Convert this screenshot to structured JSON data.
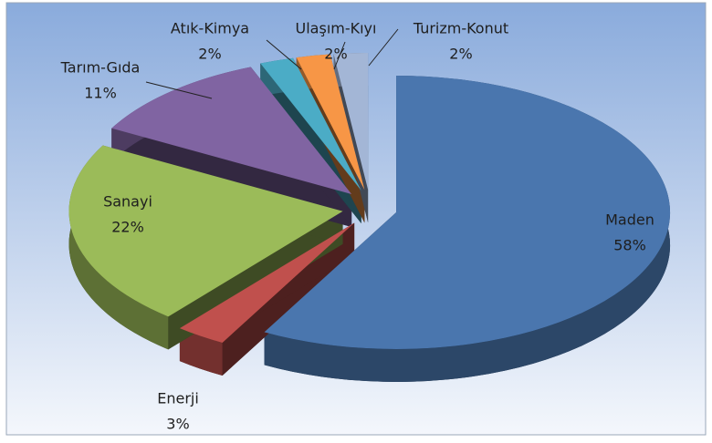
{
  "chart_data": {
    "type": "pie3d",
    "categories": [
      "Maden",
      "Enerji",
      "Sanayi",
      "Tarım-Gıda",
      "Atık-Kimya",
      "Ulaşım-Kıyı",
      "Turizm-Konut"
    ],
    "values": [
      58,
      3,
      22,
      11,
      2,
      2,
      2
    ],
    "value_labels": [
      "58%",
      "3%",
      "22%",
      "11%",
      "2%",
      "2%",
      "2%"
    ],
    "colors": [
      "#4a76ae",
      "#c0504d",
      "#9bbb59",
      "#8064a2",
      "#4bacc6",
      "#f79646",
      "#a3b6d6"
    ]
  }
}
